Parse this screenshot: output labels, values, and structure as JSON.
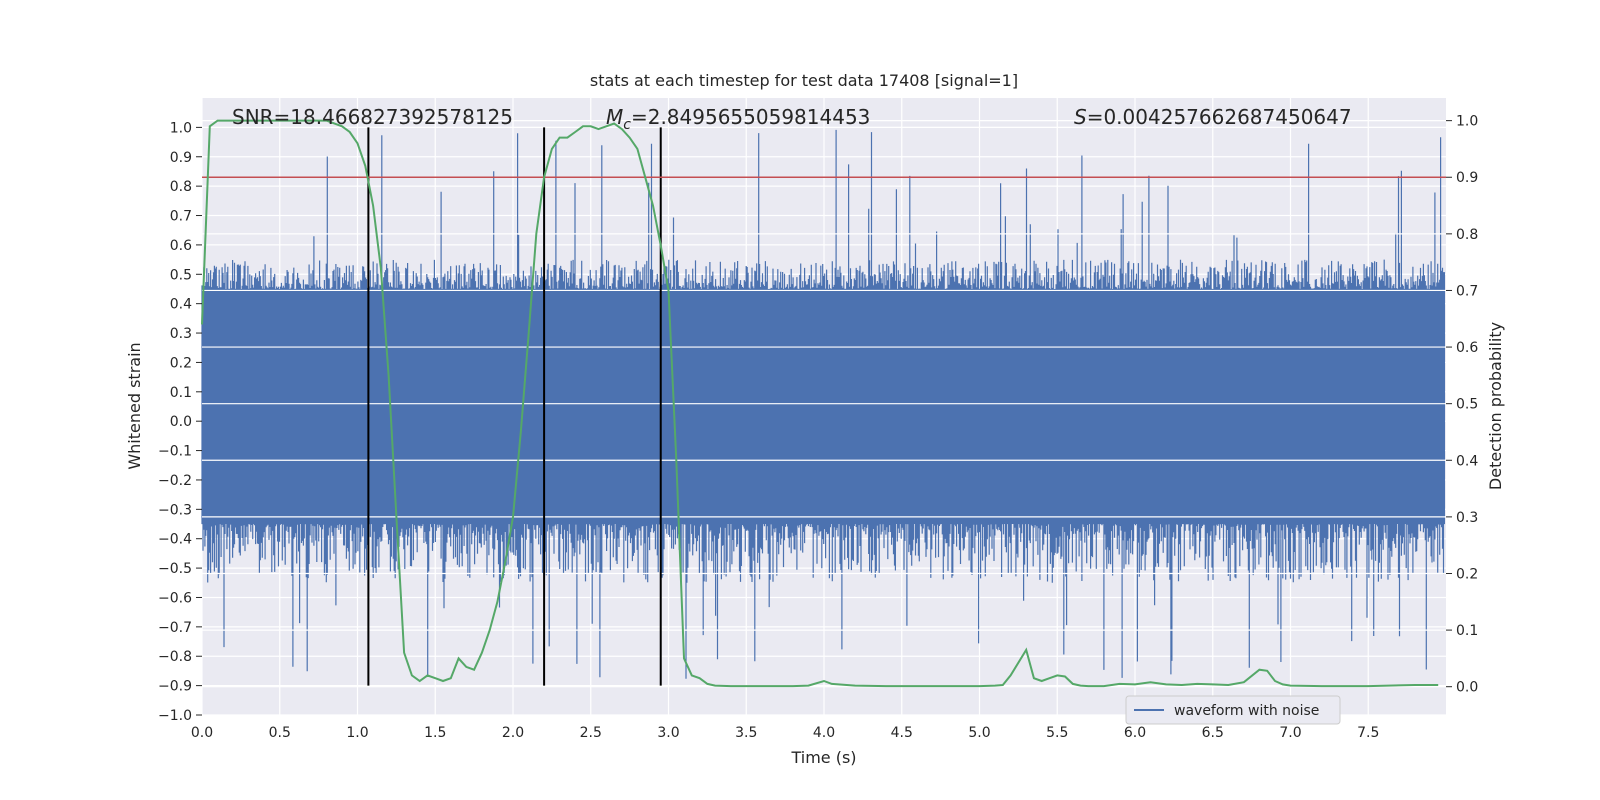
{
  "chart_data": {
    "type": "line",
    "title": "stats at each timestep for test data 17408 [signal=1]",
    "xlabel": "Time (s)",
    "ylabel": "Whitened strain",
    "y2label": "Detection probability",
    "xlim": [
      0.0,
      8.0
    ],
    "ylim": [
      -1.0,
      1.1
    ],
    "y2lim": [
      -0.05,
      1.04
    ],
    "xticks": [
      0.0,
      0.5,
      1.0,
      1.5,
      2.0,
      2.5,
      3.0,
      3.5,
      4.0,
      4.5,
      5.0,
      5.5,
      6.0,
      6.5,
      7.0,
      7.5
    ],
    "xtick_labels": [
      "0.0",
      "0.5",
      "1.0",
      "1.5",
      "2.0",
      "2.5",
      "3.0",
      "3.5",
      "4.0",
      "4.5",
      "5.0",
      "5.5",
      "6.0",
      "6.5",
      "7.0",
      "7.5"
    ],
    "yticks": [
      -1.0,
      -0.9,
      -0.8,
      -0.7,
      -0.6,
      -0.5,
      -0.4,
      -0.3,
      -0.2,
      -0.1,
      0.0,
      0.1,
      0.2,
      0.3,
      0.4,
      0.5,
      0.6,
      0.7,
      0.8,
      0.9,
      1.0
    ],
    "ytick_labels": [
      "−1.0",
      "−0.9",
      "−0.8",
      "−0.7",
      "−0.6",
      "−0.5",
      "−0.4",
      "−0.3",
      "−0.2",
      "−0.1",
      "0.0",
      "0.1",
      "0.2",
      "0.3",
      "0.4",
      "0.5",
      "0.6",
      "0.7",
      "0.8",
      "0.9",
      "1.0"
    ],
    "y2ticks": [
      0.0,
      0.1,
      0.2,
      0.3,
      0.4,
      0.5,
      0.6,
      0.7,
      0.8,
      0.9,
      1.0
    ],
    "y2tick_labels": [
      "0.0",
      "0.1",
      "0.2",
      "0.3",
      "0.4",
      "0.5",
      "0.6",
      "0.7",
      "0.8",
      "0.9",
      "1.0"
    ],
    "annotations": {
      "snr": "SNR=18.466827392578125",
      "mc_symbol": "M",
      "mc_sub": "c",
      "mc_value": "=2.8495655059814453",
      "s_symbol": "S",
      "s_value": "=0.004257662687450647"
    },
    "legend": {
      "label": "waveform with noise",
      "placement": "lower-right"
    },
    "colors": {
      "waveform": "#4c72b0",
      "probability": "#55a868",
      "threshold": "#c44e52",
      "boundary": "#000000",
      "background": "#eaeaf2",
      "grid": "#ffffff"
    },
    "waveform": {
      "name": "waveform with noise",
      "t_range": [
        0.0,
        7.99
      ],
      "core_range": [
        -0.35,
        0.45
      ],
      "envelope_range": [
        -0.9,
        1.0
      ],
      "note": "dense noise band in whitened strain units"
    },
    "threshold": {
      "name": "detection threshold",
      "value": 0.9
    },
    "boundaries": [
      1.07,
      2.2,
      2.95
    ],
    "series": [
      {
        "name": "detection probability",
        "axis": "right",
        "x": [
          0.0,
          0.05,
          0.1,
          0.2,
          0.3,
          0.5,
          0.7,
          0.8,
          0.9,
          0.95,
          1.0,
          1.05,
          1.1,
          1.15,
          1.2,
          1.25,
          1.3,
          1.35,
          1.4,
          1.45,
          1.5,
          1.55,
          1.6,
          1.65,
          1.7,
          1.75,
          1.8,
          1.85,
          1.9,
          1.95,
          2.0,
          2.05,
          2.1,
          2.15,
          2.2,
          2.25,
          2.3,
          2.35,
          2.4,
          2.45,
          2.5,
          2.55,
          2.6,
          2.65,
          2.7,
          2.75,
          2.8,
          2.85,
          2.9,
          2.95,
          3.0,
          3.05,
          3.1,
          3.15,
          3.2,
          3.25,
          3.3,
          3.4,
          3.5,
          3.6,
          3.8,
          3.9,
          4.0,
          4.05,
          4.2,
          4.4,
          4.6,
          4.8,
          5.0,
          5.1,
          5.15,
          5.2,
          5.3,
          5.35,
          5.4,
          5.45,
          5.5,
          5.55,
          5.6,
          5.65,
          5.7,
          5.8,
          5.9,
          6.0,
          6.1,
          6.2,
          6.3,
          6.4,
          6.5,
          6.6,
          6.7,
          6.8,
          6.85,
          6.9,
          6.95,
          7.0,
          7.2,
          7.5,
          7.8,
          7.95
        ],
        "values": [
          0.64,
          0.99,
          1.0,
          1.0,
          1.0,
          1.0,
          1.0,
          1.0,
          0.99,
          0.98,
          0.96,
          0.92,
          0.85,
          0.74,
          0.55,
          0.3,
          0.06,
          0.02,
          0.01,
          0.02,
          0.015,
          0.01,
          0.015,
          0.05,
          0.035,
          0.03,
          0.06,
          0.1,
          0.15,
          0.22,
          0.3,
          0.45,
          0.62,
          0.8,
          0.9,
          0.95,
          0.97,
          0.97,
          0.98,
          0.99,
          0.99,
          0.985,
          0.99,
          0.995,
          0.985,
          0.97,
          0.95,
          0.9,
          0.85,
          0.78,
          0.7,
          0.4,
          0.05,
          0.02,
          0.015,
          0.005,
          0.002,
          0.001,
          0.001,
          0.001,
          0.001,
          0.002,
          0.01,
          0.005,
          0.002,
          0.001,
          0.001,
          0.001,
          0.001,
          0.002,
          0.003,
          0.02,
          0.065,
          0.015,
          0.01,
          0.015,
          0.02,
          0.018,
          0.005,
          0.002,
          0.001,
          0.001,
          0.005,
          0.004,
          0.008,
          0.004,
          0.003,
          0.005,
          0.004,
          0.003,
          0.008,
          0.03,
          0.028,
          0.01,
          0.004,
          0.002,
          0.001,
          0.001,
          0.003,
          0.003
        ]
      }
    ]
  }
}
